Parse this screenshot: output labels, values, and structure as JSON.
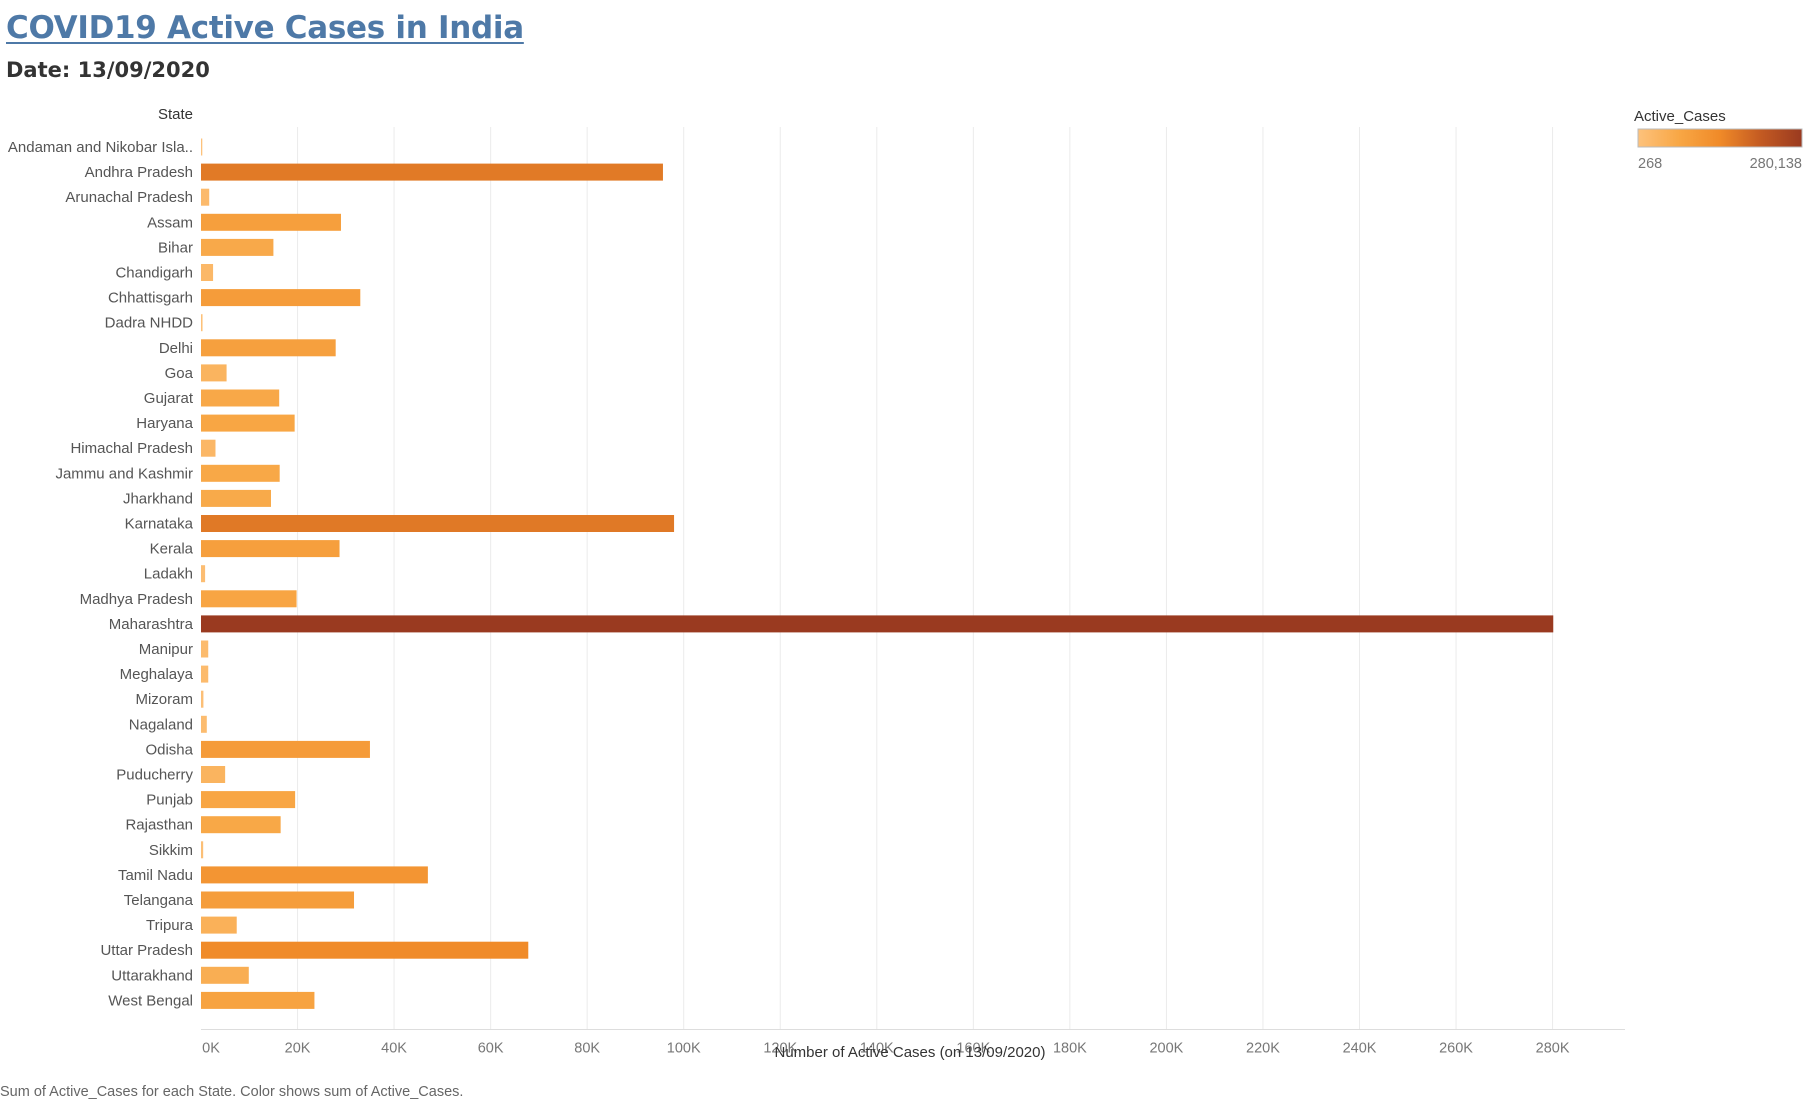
{
  "header": {
    "title": "COVID19 Active Cases in India",
    "date_label": "Date: 13/09/2020"
  },
  "legend": {
    "title": "Active_Cases",
    "min_label": "268",
    "max_label": "280,138",
    "colors": [
      "#fdc27c",
      "#f8a745",
      "#f08a28",
      "#c35a22",
      "#9a3a20"
    ]
  },
  "footnote": "Sum of Active_Cases for each State.  Color shows sum of Active_Cases.",
  "chart_data": {
    "type": "bar",
    "orientation": "horizontal",
    "row_header": "State",
    "xlabel": "Number of Active Cases (on 13/09/2020)",
    "xlim": [
      0,
      295000
    ],
    "x_ticks": [
      0,
      20000,
      40000,
      60000,
      80000,
      100000,
      120000,
      140000,
      160000,
      180000,
      200000,
      220000,
      240000,
      260000,
      280000
    ],
    "x_tick_labels": [
      "0K",
      "20K",
      "40K",
      "60K",
      "80K",
      "100K",
      "120K",
      "140K",
      "160K",
      "180K",
      "200K",
      "220K",
      "240K",
      "260K",
      "280K"
    ],
    "color_range": [
      268,
      280138
    ],
    "categories": [
      "Andaman and Nikobar Isla..",
      "Andhra Pradesh",
      "Arunachal Pradesh",
      "Assam",
      "Bihar",
      "Chandigarh",
      "Chhattisgarh",
      "Dadra NHDD",
      "Delhi",
      "Goa",
      "Gujarat",
      "Haryana",
      "Himachal Pradesh",
      "Jammu and Kashmir",
      "Jharkhand",
      "Karnataka",
      "Kerala",
      "Ladakh",
      "Madhya Pradesh",
      "Maharashtra",
      "Manipur",
      "Meghalaya",
      "Mizoram",
      "Nagaland",
      "Odisha",
      "Puducherry",
      "Punjab",
      "Rajasthan",
      "Sikkim",
      "Tamil Nadu",
      "Telangana",
      "Tripura",
      "Uttar Pradesh",
      "Uttarakhand",
      "West Bengal"
    ],
    "values": [
      268,
      95700,
      1700,
      29000,
      15000,
      2500,
      33000,
      320,
      27900,
      5300,
      16200,
      19400,
      3000,
      16300,
      14500,
      98000,
      28700,
      850,
      19800,
      280138,
      1500,
      1500,
      500,
      1200,
      35000,
      5000,
      19500,
      16500,
      450,
      47000,
      31700,
      7400,
      67800,
      9900,
      23500
    ]
  }
}
